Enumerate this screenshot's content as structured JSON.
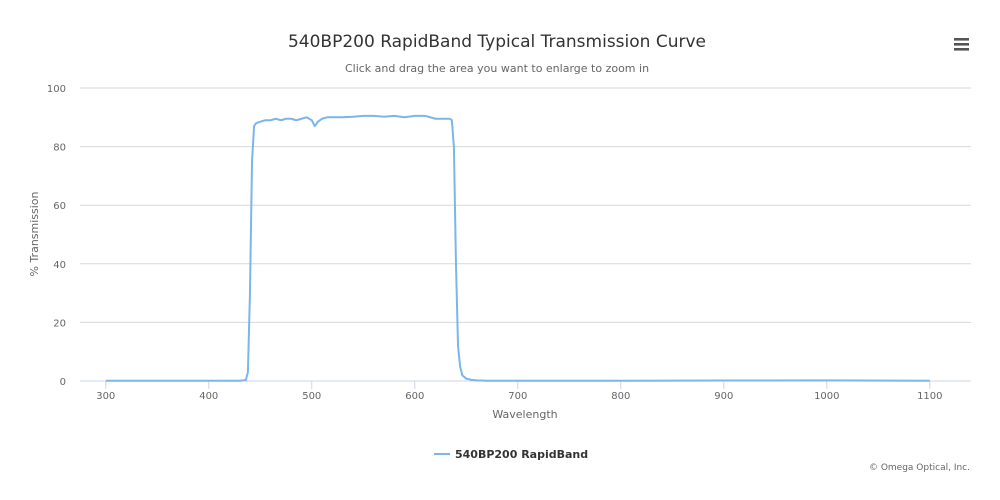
{
  "chart_data": {
    "type": "line",
    "title": "540BP200 RapidBand Typical Transmission Curve",
    "subtitle": "Click and drag the area you want to enlarge to zoom in",
    "xlabel": "Wavelength",
    "ylabel": "% Transmission",
    "xlim": [
      275,
      1140
    ],
    "ylim": [
      0,
      100
    ],
    "x_ticks": [
      300,
      400,
      500,
      600,
      700,
      800,
      900,
      1000,
      1100
    ],
    "y_ticks": [
      0,
      20,
      40,
      60,
      80,
      100
    ],
    "grid": true,
    "legend_position": "bottom-center",
    "series": [
      {
        "name": "540BP200 RapidBand",
        "color": "#7cb5ec",
        "x": [
          300,
          400,
          430,
          436,
          438,
          440,
          442,
          444,
          446,
          450,
          455,
          460,
          465,
          470,
          475,
          480,
          485,
          490,
          495,
          500,
          503,
          506,
          510,
          515,
          520,
          530,
          540,
          550,
          560,
          570,
          580,
          590,
          600,
          610,
          620,
          625,
          630,
          634,
          636,
          638,
          640,
          642,
          644,
          646,
          650,
          655,
          660,
          670,
          700,
          800,
          900,
          1000,
          1100
        ],
        "y": [
          0.1,
          0.1,
          0.1,
          0.3,
          3,
          30,
          75,
          87,
          88,
          88.5,
          89,
          89,
          89.5,
          89,
          89.5,
          89.5,
          89,
          89.5,
          90,
          89,
          87,
          88.5,
          89.5,
          90,
          90,
          90,
          90.2,
          90.5,
          90.5,
          90.2,
          90.5,
          90,
          90.5,
          90.5,
          89.5,
          89.5,
          89.5,
          89.5,
          89,
          80,
          40,
          12,
          5,
          2,
          0.8,
          0.4,
          0.2,
          0.1,
          0.1,
          0.1,
          0.15,
          0.2,
          0.1
        ]
      }
    ]
  },
  "credits": "© Omega Optical, Inc.",
  "menu_icon": "hamburger-menu-icon"
}
